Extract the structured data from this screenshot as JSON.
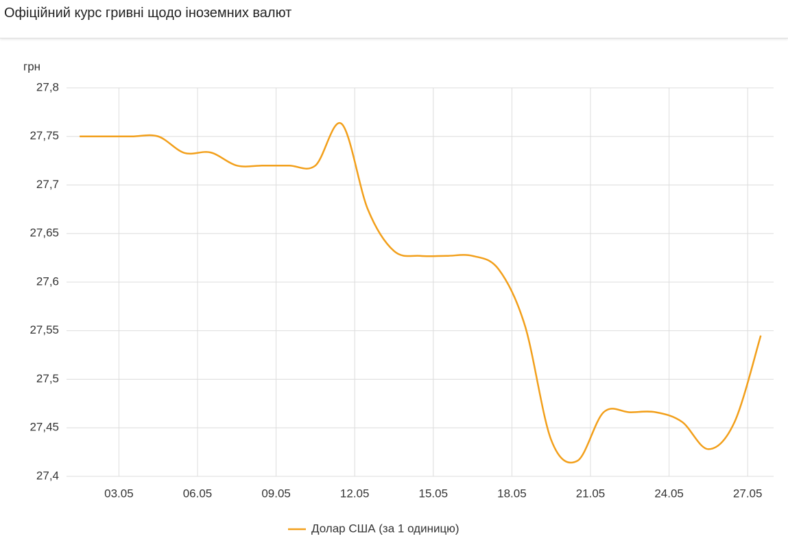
{
  "chart_data": {
    "type": "line",
    "title": "Офіційний курс гривні щодо іноземних валют",
    "y_label": "грн",
    "x": [
      "01.05",
      "02.05",
      "03.05",
      "04.05",
      "05.05",
      "06.05",
      "07.05",
      "08.05",
      "09.05",
      "10.05",
      "11.05",
      "12.05",
      "13.05",
      "14.05",
      "15.05",
      "16.05",
      "17.05",
      "18.05",
      "19.05",
      "20.05",
      "21.05",
      "22.05",
      "23.05",
      "24.05",
      "25.05",
      "26.05",
      "27.05"
    ],
    "xticks": [
      "03.05",
      "06.05",
      "09.05",
      "12.05",
      "15.05",
      "18.05",
      "21.05",
      "24.05",
      "27.05"
    ],
    "series": [
      {
        "name": "Долар США (за 1 одиницю)",
        "color": "#f29f1a",
        "values": [
          27.75,
          27.75,
          27.75,
          27.75,
          27.733,
          27.7335,
          27.72,
          27.72,
          27.72,
          27.72,
          27.763,
          27.675,
          27.632,
          27.627,
          27.627,
          27.627,
          27.613,
          27.555,
          27.4375,
          27.416,
          27.466,
          27.466,
          27.466,
          27.456,
          27.428,
          27.456,
          27.545
        ]
      }
    ],
    "ylim": [
      27.4,
      27.8
    ],
    "yticks": [
      {
        "value": 27.4,
        "label": "27,4"
      },
      {
        "value": 27.45,
        "label": "27,45"
      },
      {
        "value": 27.5,
        "label": "27,5"
      },
      {
        "value": 27.55,
        "label": "27,55"
      },
      {
        "value": 27.6,
        "label": "27,6"
      },
      {
        "value": 27.65,
        "label": "27,65"
      },
      {
        "value": 27.7,
        "label": "27,7"
      },
      {
        "value": 27.75,
        "label": "27,75"
      },
      {
        "value": 27.8,
        "label": "27,8"
      }
    ],
    "grid": true,
    "legend": "bottom"
  }
}
